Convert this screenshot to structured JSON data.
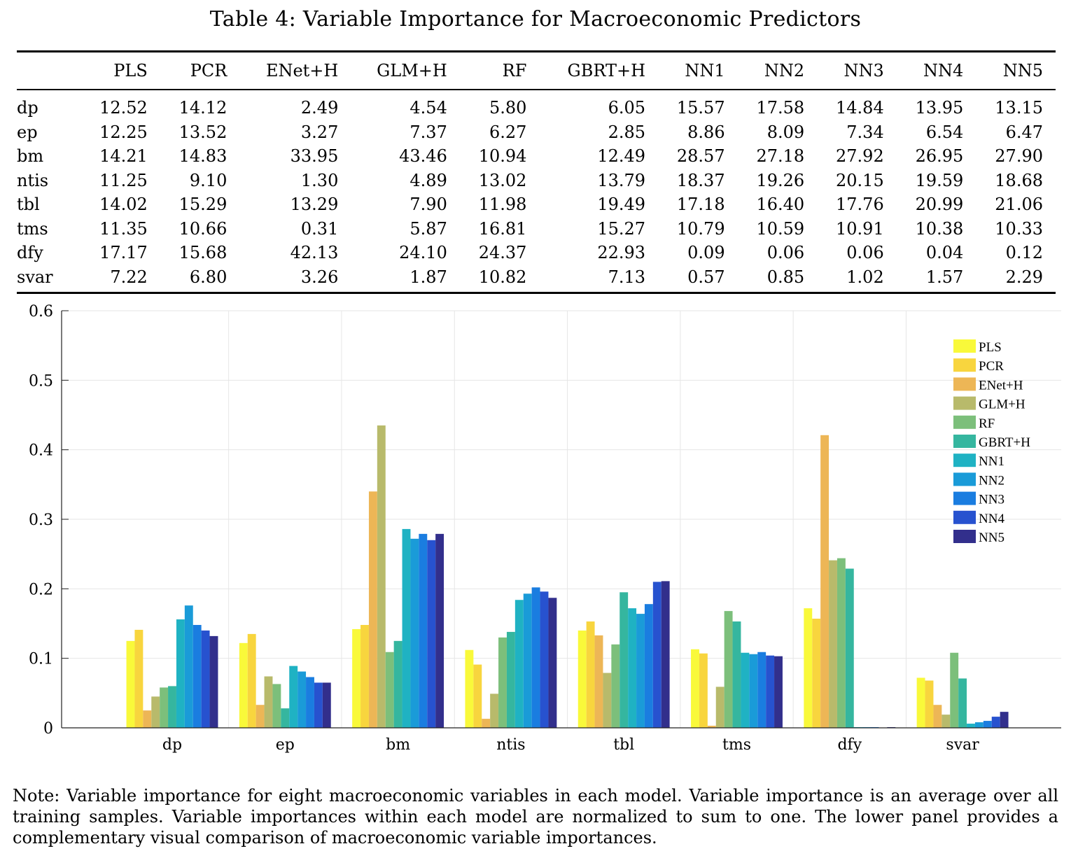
{
  "title": "Table 4: Variable Importance for Macroeconomic Predictors",
  "table": {
    "columns": [
      "",
      "PLS",
      "PCR",
      "ENet+H",
      "GLM+H",
      "RF",
      "GBRT+H",
      "NN1",
      "NN2",
      "NN3",
      "NN4",
      "NN5"
    ],
    "rows": [
      [
        "dp",
        "12.52",
        "14.12",
        "2.49",
        "4.54",
        "5.80",
        "6.05",
        "15.57",
        "17.58",
        "14.84",
        "13.95",
        "13.15"
      ],
      [
        "ep",
        "12.25",
        "13.52",
        "3.27",
        "7.37",
        "6.27",
        "2.85",
        "8.86",
        "8.09",
        "7.34",
        "6.54",
        "6.47"
      ],
      [
        "bm",
        "14.21",
        "14.83",
        "33.95",
        "43.46",
        "10.94",
        "12.49",
        "28.57",
        "27.18",
        "27.92",
        "26.95",
        "27.90"
      ],
      [
        "ntis",
        "11.25",
        "9.10",
        "1.30",
        "4.89",
        "13.02",
        "13.79",
        "18.37",
        "19.26",
        "20.15",
        "19.59",
        "18.68"
      ],
      [
        "tbl",
        "14.02",
        "15.29",
        "13.29",
        "7.90",
        "11.98",
        "19.49",
        "17.18",
        "16.40",
        "17.76",
        "20.99",
        "21.06"
      ],
      [
        "tms",
        "11.35",
        "10.66",
        "0.31",
        "5.87",
        "16.81",
        "15.27",
        "10.79",
        "10.59",
        "10.91",
        "10.38",
        "10.33"
      ],
      [
        "dfy",
        "17.17",
        "15.68",
        "42.13",
        "24.10",
        "24.37",
        "22.93",
        "0.09",
        "0.06",
        "0.06",
        "0.04",
        "0.12"
      ],
      [
        "svar",
        "7.22",
        "6.80",
        "3.26",
        "1.87",
        "10.82",
        "7.13",
        "0.57",
        "0.85",
        "1.02",
        "1.57",
        "2.29"
      ]
    ]
  },
  "chart_data": {
    "type": "bar",
    "categories": [
      "dp",
      "ep",
      "bm",
      "ntis",
      "tbl",
      "tms",
      "dfy",
      "svar"
    ],
    "ylim": [
      0,
      0.6
    ],
    "yticks": [
      "0",
      "0.1",
      "0.2",
      "0.3",
      "0.4",
      "0.5",
      "0.6"
    ],
    "ytick_values": [
      0,
      0.1,
      0.2,
      0.3,
      0.4,
      0.5,
      0.6
    ],
    "grid": true,
    "legend_position": "top-right",
    "series": [
      {
        "name": "PLS",
        "color": "#f9f93a",
        "values": [
          0.125,
          0.122,
          0.142,
          0.112,
          0.14,
          0.113,
          0.172,
          0.072
        ]
      },
      {
        "name": "PCR",
        "color": "#f8d53e",
        "values": [
          0.141,
          0.135,
          0.148,
          0.091,
          0.153,
          0.107,
          0.157,
          0.068
        ]
      },
      {
        "name": "ENet+H",
        "color": "#edb656",
        "values": [
          0.025,
          0.033,
          0.34,
          0.013,
          0.133,
          0.003,
          0.421,
          0.033
        ]
      },
      {
        "name": "GLM+H",
        "color": "#b8ba6b",
        "values": [
          0.045,
          0.074,
          0.435,
          0.049,
          0.079,
          0.059,
          0.241,
          0.019
        ]
      },
      {
        "name": "RF",
        "color": "#7cbf7b",
        "values": [
          0.058,
          0.063,
          0.109,
          0.13,
          0.12,
          0.168,
          0.244,
          0.108
        ]
      },
      {
        "name": "GBRT+H",
        "color": "#35b69f",
        "values": [
          0.06,
          0.028,
          0.125,
          0.138,
          0.195,
          0.153,
          0.229,
          0.071
        ]
      },
      {
        "name": "NN1",
        "color": "#1fb2c3",
        "values": [
          0.156,
          0.089,
          0.286,
          0.184,
          0.172,
          0.108,
          0.001,
          0.006
        ]
      },
      {
        "name": "NN2",
        "color": "#1a9bd8",
        "values": [
          0.176,
          0.081,
          0.272,
          0.193,
          0.164,
          0.106,
          0.001,
          0.008
        ]
      },
      {
        "name": "NN3",
        "color": "#1a7de0",
        "values": [
          0.148,
          0.073,
          0.279,
          0.202,
          0.178,
          0.109,
          0.001,
          0.01
        ]
      },
      {
        "name": "NN4",
        "color": "#2752cf",
        "values": [
          0.14,
          0.065,
          0.27,
          0.196,
          0.21,
          0.104,
          0.0,
          0.016
        ]
      },
      {
        "name": "NN5",
        "color": "#322f8c",
        "values": [
          0.132,
          0.065,
          0.279,
          0.187,
          0.211,
          0.103,
          0.001,
          0.023
        ]
      }
    ]
  },
  "note": "Note: Variable importance for eight macroeconomic variables in each model. Variable importance is an average over all training samples. Variable importances within each model are normalized to sum to one. The lower panel provides a complementary visual comparison of macroeconomic variable importances."
}
